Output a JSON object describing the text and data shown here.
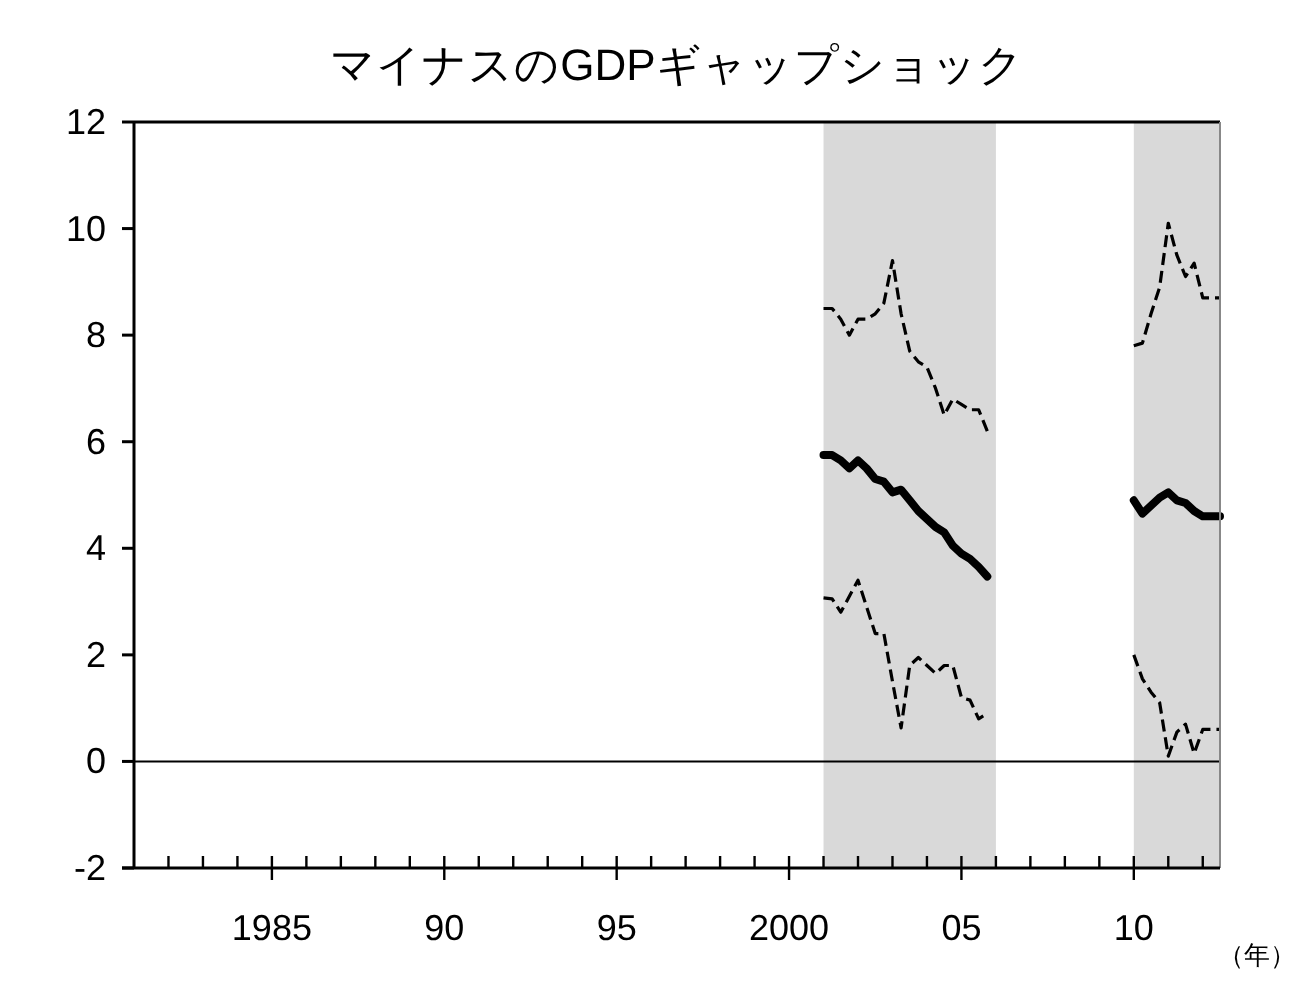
{
  "chart_data": {
    "type": "line",
    "title": "マイナスのGDPギャップショック",
    "xlabel": "（年）",
    "xlim": [
      1981,
      2012.5
    ],
    "xticks": [
      {
        "value": 1982,
        "label": null
      },
      {
        "value": 1983,
        "label": null
      },
      {
        "value": 1984,
        "label": null
      },
      1985,
      {
        "value": 1986,
        "label": null
      },
      {
        "value": 1987,
        "label": null
      },
      {
        "value": 1988,
        "label": null
      },
      {
        "value": 1989,
        "label": null
      },
      {
        "value": 1990,
        "label": "90"
      },
      {
        "value": 1991,
        "label": null
      },
      {
        "value": 1992,
        "label": null
      },
      {
        "value": 1993,
        "label": null
      },
      {
        "value": 1994,
        "label": null
      },
      {
        "value": 1995,
        "label": "95"
      },
      {
        "value": 1996,
        "label": null
      },
      {
        "value": 1997,
        "label": null
      },
      {
        "value": 1998,
        "label": null
      },
      {
        "value": 1999,
        "label": null
      },
      2000,
      {
        "value": 2001,
        "label": null
      },
      {
        "value": 2002,
        "label": null
      },
      {
        "value": 2003,
        "label": null
      },
      {
        "value": 2004,
        "label": null
      },
      {
        "value": 2005,
        "label": "05"
      },
      {
        "value": 2006,
        "label": null
      },
      {
        "value": 2007,
        "label": null
      },
      {
        "value": 2008,
        "label": null
      },
      {
        "value": 2009,
        "label": null
      },
      {
        "value": 2010,
        "label": "10"
      },
      {
        "value": 2011,
        "label": null
      },
      {
        "value": 2012,
        "label": null
      }
    ],
    "ylim": [
      -2,
      12
    ],
    "yticks": [
      -2,
      0,
      2,
      4,
      6,
      8,
      10,
      12
    ],
    "grid": false,
    "bands": [
      {
        "axis": "x",
        "from": 2001,
        "to": 2006,
        "color": "#d9d9d9"
      },
      {
        "axis": "x",
        "from": 2010,
        "to": 2012.5,
        "color": "#d9d9d9"
      }
    ],
    "ref_lines": [
      {
        "axis": "y",
        "value": 0,
        "color": "#000000"
      }
    ],
    "x": [
      2001,
      2001.25,
      2001.5,
      2001.75,
      2002,
      2002.25,
      2002.5,
      2002.75,
      2003,
      2003.25,
      2003.5,
      2003.75,
      2004,
      2004.25,
      2004.5,
      2004.75,
      2005,
      2005.25,
      2005.5,
      2005.75
    ],
    "series": [
      {
        "color": "#000000",
        "line_style": "dashed",
        "values": [
          8.5,
          8.5,
          8.3,
          8.0,
          8.3,
          8.3,
          8.4,
          8.6,
          9.4,
          8.4,
          7.7,
          7.5,
          7.4,
          7.0,
          6.5,
          6.8,
          6.7,
          6.6,
          6.6,
          6.2
        ]
      },
      {
        "color": "#000000",
        "line_style": "solid",
        "values": [
          5.75,
          5.75,
          5.65,
          5.5,
          5.65,
          5.5,
          5.3,
          5.25,
          5.05,
          5.1,
          4.9,
          4.7,
          4.55,
          4.4,
          4.3,
          4.05,
          3.9,
          3.8,
          3.65,
          3.47
        ]
      },
      {
        "color": "#000000",
        "line_style": "dashed",
        "values": [
          3.07,
          3.05,
          2.8,
          3.1,
          3.4,
          2.9,
          2.4,
          2.4,
          1.5,
          0.63,
          1.8,
          1.95,
          1.8,
          1.65,
          1.8,
          1.8,
          1.2,
          1.15,
          0.8,
          0.9
        ]
      },
      {
        "color": "#000000",
        "line_style": "dashed",
        "x": [
          2010,
          2010.25,
          2010.5,
          2010.75,
          2011,
          2011.25,
          2011.5,
          2011.75,
          2012,
          2012.25,
          2012.5
        ],
        "values": [
          7.8,
          7.85,
          8.4,
          8.9,
          10.1,
          9.5,
          9.1,
          9.35,
          8.7,
          8.7,
          8.7
        ]
      },
      {
        "color": "#000000",
        "line_style": "solid",
        "x": [
          2010,
          2010.25,
          2010.5,
          2010.75,
          2011,
          2011.25,
          2011.5,
          2011.75,
          2012,
          2012.25,
          2012.5
        ],
        "values": [
          4.9,
          4.65,
          4.8,
          4.95,
          5.05,
          4.9,
          4.85,
          4.7,
          4.6,
          4.6,
          4.6
        ]
      },
      {
        "color": "#000000",
        "line_style": "dashed",
        "x": [
          2010,
          2010.25,
          2010.5,
          2010.75,
          2011,
          2011.25,
          2011.5,
          2011.75,
          2012,
          2012.25,
          2012.5
        ],
        "values": [
          2.0,
          1.55,
          1.3,
          1.1,
          0.1,
          0.55,
          0.7,
          0.15,
          0.6,
          0.6,
          0.6
        ]
      }
    ]
  }
}
